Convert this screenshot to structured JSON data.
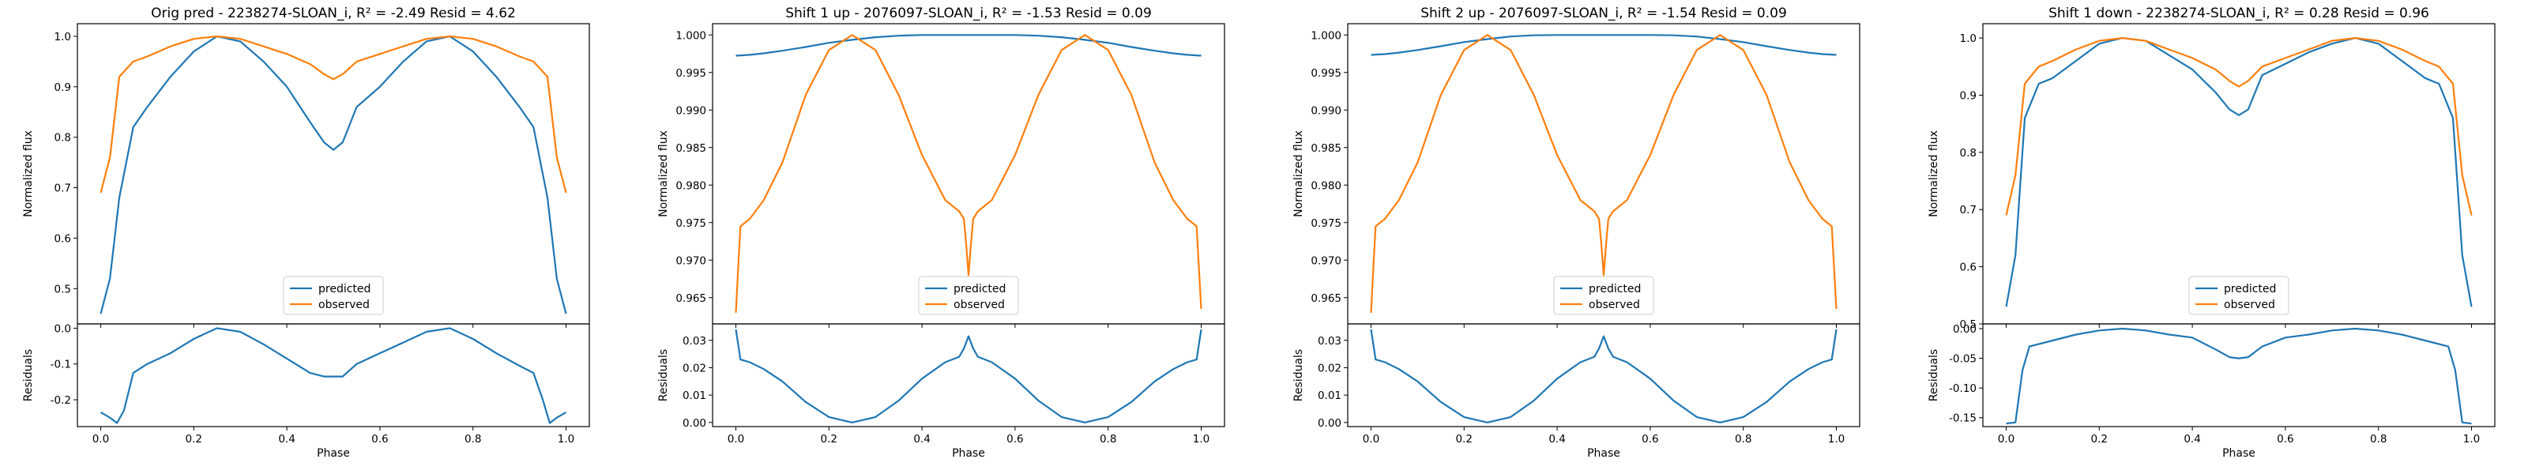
{
  "colors": {
    "predicted": "#1f77b4",
    "observed": "#ff7f0e"
  },
  "figure": {
    "panels": [
      {
        "title": "Orig pred - 2238274-SLOAN_i, R² = -2.49 Resid = 4.62",
        "main": {
          "ylabel": "Normalized flux",
          "ylim": [
            0.43,
            1.025
          ],
          "yticks": [
            0.5,
            0.6,
            0.7,
            0.8,
            0.9,
            1.0
          ]
        },
        "resid": {
          "ylabel": "Residuals",
          "xlabel": "Phase",
          "ylim": [
            -0.275,
            0.012
          ],
          "yticks": [
            0.0,
            -0.1,
            -0.2
          ]
        },
        "xticks": [
          0.0,
          0.2,
          0.4,
          0.6,
          0.8,
          1.0
        ],
        "legend": [
          "predicted",
          "observed"
        ]
      },
      {
        "title": "Shift 1 up - 2076097-SLOAN_i, R² = -1.53 Resid = 0.09",
        "main": {
          "ylabel": "Normalized flux",
          "ylim": [
            0.9615,
            1.0015
          ],
          "yticks": [
            0.965,
            0.97,
            0.975,
            0.98,
            0.985,
            0.99,
            0.995,
            1.0
          ]
        },
        "resid": {
          "ylabel": "Residuals",
          "xlabel": "Phase",
          "ylim": [
            -0.0015,
            0.036
          ],
          "yticks": [
            0.0,
            0.01,
            0.02,
            0.03
          ]
        },
        "xticks": [
          0.0,
          0.2,
          0.4,
          0.6,
          0.8,
          1.0
        ],
        "legend": [
          "predicted",
          "observed"
        ]
      },
      {
        "title": "Shift 2 up - 2076097-SLOAN_i, R² = -1.54 Resid = 0.09",
        "main": {
          "ylabel": "Normalized flux",
          "ylim": [
            0.9615,
            1.0015
          ],
          "yticks": [
            0.965,
            0.97,
            0.975,
            0.98,
            0.985,
            0.99,
            0.995,
            1.0
          ]
        },
        "resid": {
          "ylabel": "Residuals",
          "xlabel": "Phase",
          "ylim": [
            -0.0015,
            0.036
          ],
          "yticks": [
            0.0,
            0.01,
            0.02,
            0.03
          ]
        },
        "xticks": [
          0.0,
          0.2,
          0.4,
          0.6,
          0.8,
          1.0
        ],
        "legend": [
          "predicted",
          "observed"
        ]
      },
      {
        "title": "Shift 1 down - 2238274-SLOAN_i, R² = 0.28 Resid = 0.96",
        "main": {
          "ylabel": "Normalized flux",
          "ylim": [
            0.5,
            1.025
          ],
          "yticks": [
            0.5,
            0.6,
            0.7,
            0.8,
            0.9,
            1.0
          ]
        },
        "resid": {
          "ylabel": "Residuals",
          "xlabel": "Phase",
          "ylim": [
            -0.165,
            0.008
          ],
          "yticks": [
            0.0,
            -0.05,
            -0.1,
            -0.15
          ]
        },
        "xticks": [
          0.0,
          0.2,
          0.4,
          0.6,
          0.8,
          1.0
        ],
        "legend": [
          "predicted",
          "observed"
        ]
      }
    ]
  },
  "chart_data": [
    {
      "type": "line",
      "title": "Orig pred - 2238274-SLOAN_i, R² = -2.49 Resid = 4.62",
      "xlabel": "Phase",
      "ylabel": "Normalized flux",
      "xlim": [
        -0.05,
        1.05
      ],
      "ylim": [
        0.43,
        1.025
      ],
      "legend_loc": "lower center",
      "grid": false,
      "x": [
        0.0,
        0.02,
        0.04,
        0.07,
        0.1,
        0.15,
        0.2,
        0.25,
        0.3,
        0.35,
        0.4,
        0.45,
        0.48,
        0.5,
        0.52,
        0.55,
        0.6,
        0.65,
        0.7,
        0.75,
        0.8,
        0.85,
        0.9,
        0.93,
        0.96,
        0.98,
        1.0
      ],
      "series": [
        {
          "name": "predicted",
          "values": [
            0.45,
            0.52,
            0.68,
            0.82,
            0.86,
            0.92,
            0.97,
            1.0,
            0.99,
            0.95,
            0.9,
            0.83,
            0.79,
            0.775,
            0.79,
            0.86,
            0.9,
            0.95,
            0.99,
            1.0,
            0.97,
            0.92,
            0.86,
            0.82,
            0.68,
            0.52,
            0.45
          ]
        },
        {
          "name": "observed",
          "values": [
            0.69,
            0.76,
            0.92,
            0.95,
            0.96,
            0.98,
            0.995,
            1.0,
            0.995,
            0.98,
            0.965,
            0.945,
            0.925,
            0.915,
            0.925,
            0.95,
            0.965,
            0.98,
            0.995,
            1.0,
            0.995,
            0.98,
            0.96,
            0.95,
            0.92,
            0.76,
            0.69
          ]
        }
      ],
      "residuals": {
        "ylabel": "Residuals",
        "ylim": [
          -0.275,
          0.012
        ],
        "x": [
          0.0,
          0.02,
          0.035,
          0.05,
          0.07,
          0.1,
          0.15,
          0.2,
          0.25,
          0.3,
          0.35,
          0.4,
          0.45,
          0.48,
          0.52,
          0.55,
          0.6,
          0.65,
          0.7,
          0.75,
          0.8,
          0.85,
          0.9,
          0.93,
          0.95,
          0.965,
          0.98,
          1.0
        ],
        "values": [
          -0.235,
          -0.25,
          -0.265,
          -0.23,
          -0.125,
          -0.1,
          -0.07,
          -0.03,
          0.0,
          -0.01,
          -0.045,
          -0.085,
          -0.125,
          -0.135,
          -0.135,
          -0.1,
          -0.07,
          -0.04,
          -0.01,
          0.0,
          -0.03,
          -0.07,
          -0.105,
          -0.125,
          -0.2,
          -0.265,
          -0.25,
          -0.235
        ]
      }
    },
    {
      "type": "line",
      "title": "Shift 1 up - 2076097-SLOAN_i, R² = -1.53 Resid = 0.09",
      "xlabel": "Phase",
      "ylabel": "Normalized flux",
      "xlim": [
        -0.05,
        1.05
      ],
      "ylim": [
        0.9615,
        1.0015
      ],
      "legend_loc": "lower center",
      "grid": false,
      "x": [
        0.0,
        0.005,
        0.01,
        0.03,
        0.06,
        0.1,
        0.15,
        0.2,
        0.25,
        0.3,
        0.35,
        0.4,
        0.45,
        0.48,
        0.49,
        0.495,
        0.5,
        0.505,
        0.51,
        0.52,
        0.55,
        0.6,
        0.65,
        0.7,
        0.75,
        0.8,
        0.85,
        0.9,
        0.94,
        0.97,
        0.99,
        0.995,
        1.0
      ],
      "series": [
        {
          "name": "predicted",
          "values": [
            0.99725,
            0.99725,
            0.99728,
            0.99735,
            0.99755,
            0.9979,
            0.9984,
            0.99895,
            0.99935,
            0.9997,
            0.9999,
            1.0,
            1.0,
            1.0,
            1.0,
            1.0,
            1.0,
            1.0,
            1.0,
            1.0,
            1.0,
            1.0,
            0.9999,
            0.9997,
            0.99935,
            0.99895,
            0.9984,
            0.9979,
            0.99755,
            0.99735,
            0.99728,
            0.99725,
            0.99725
          ]
        },
        {
          "name": "observed",
          "values": [
            0.963,
            0.969,
            0.9745,
            0.9755,
            0.978,
            0.983,
            0.992,
            0.998,
            1.0,
            0.998,
            0.992,
            0.984,
            0.978,
            0.9765,
            0.9755,
            0.972,
            0.968,
            0.972,
            0.9755,
            0.9765,
            0.978,
            0.984,
            0.992,
            0.998,
            1.0,
            0.998,
            0.992,
            0.983,
            0.978,
            0.9755,
            0.9745,
            0.969,
            0.9635
          ]
        }
      ],
      "residuals": {
        "ylabel": "Residuals",
        "ylim": [
          -0.0015,
          0.036
        ],
        "x": [
          0.0,
          0.01,
          0.03,
          0.06,
          0.1,
          0.15,
          0.2,
          0.25,
          0.3,
          0.35,
          0.4,
          0.45,
          0.48,
          0.49,
          0.5,
          0.51,
          0.52,
          0.55,
          0.6,
          0.65,
          0.7,
          0.75,
          0.8,
          0.85,
          0.9,
          0.94,
          0.97,
          0.99,
          1.0
        ],
        "values": [
          0.034,
          0.023,
          0.022,
          0.0195,
          0.015,
          0.0075,
          0.002,
          0.0,
          0.002,
          0.008,
          0.016,
          0.022,
          0.024,
          0.027,
          0.0315,
          0.027,
          0.024,
          0.022,
          0.016,
          0.008,
          0.002,
          0.0,
          0.002,
          0.0075,
          0.015,
          0.0195,
          0.022,
          0.023,
          0.034
        ]
      }
    },
    {
      "type": "line",
      "title": "Shift 2 up - 2076097-SLOAN_i, R² = -1.54 Resid = 0.09",
      "xlabel": "Phase",
      "ylabel": "Normalized flux",
      "xlim": [
        -0.05,
        1.05
      ],
      "ylim": [
        0.9615,
        1.0015
      ],
      "legend_loc": "lower center",
      "grid": false,
      "x": [
        0.0,
        0.005,
        0.01,
        0.03,
        0.06,
        0.1,
        0.15,
        0.2,
        0.25,
        0.3,
        0.35,
        0.4,
        0.45,
        0.48,
        0.49,
        0.495,
        0.5,
        0.505,
        0.51,
        0.52,
        0.55,
        0.6,
        0.65,
        0.7,
        0.75,
        0.8,
        0.85,
        0.9,
        0.94,
        0.97,
        0.99,
        0.995,
        1.0
      ],
      "series": [
        {
          "name": "predicted",
          "values": [
            0.99735,
            0.99735,
            0.99738,
            0.99745,
            0.99765,
            0.998,
            0.9985,
            0.99905,
            0.99945,
            0.9998,
            0.99995,
            1.0,
            1.0,
            1.0,
            1.0,
            1.0,
            1.0,
            1.0,
            1.0,
            1.0,
            1.0,
            1.0,
            0.99995,
            0.9998,
            0.99945,
            0.99905,
            0.9985,
            0.998,
            0.99765,
            0.99745,
            0.99738,
            0.99735,
            0.99735
          ]
        },
        {
          "name": "observed",
          "values": [
            0.963,
            0.969,
            0.9745,
            0.9755,
            0.978,
            0.983,
            0.992,
            0.998,
            1.0,
            0.998,
            0.992,
            0.984,
            0.978,
            0.9765,
            0.9755,
            0.972,
            0.968,
            0.972,
            0.9755,
            0.9765,
            0.978,
            0.984,
            0.992,
            0.998,
            1.0,
            0.998,
            0.992,
            0.983,
            0.978,
            0.9755,
            0.9745,
            0.969,
            0.9635
          ]
        }
      ],
      "residuals": {
        "ylabel": "Residuals",
        "ylim": [
          -0.0015,
          0.036
        ],
        "x": [
          0.0,
          0.01,
          0.03,
          0.06,
          0.1,
          0.15,
          0.2,
          0.25,
          0.3,
          0.35,
          0.4,
          0.45,
          0.48,
          0.49,
          0.5,
          0.51,
          0.52,
          0.55,
          0.6,
          0.65,
          0.7,
          0.75,
          0.8,
          0.85,
          0.9,
          0.94,
          0.97,
          0.99,
          1.0
        ],
        "values": [
          0.034,
          0.023,
          0.022,
          0.0195,
          0.015,
          0.0075,
          0.002,
          0.0,
          0.002,
          0.008,
          0.016,
          0.022,
          0.024,
          0.027,
          0.0315,
          0.027,
          0.024,
          0.022,
          0.016,
          0.008,
          0.002,
          0.0,
          0.002,
          0.0075,
          0.015,
          0.0195,
          0.022,
          0.023,
          0.034
        ]
      }
    },
    {
      "type": "line",
      "title": "Shift 1 down - 2238274-SLOAN_i, R² = 0.28 Resid = 0.96",
      "xlabel": "Phase",
      "ylabel": "Normalized flux",
      "xlim": [
        -0.05,
        1.05
      ],
      "ylim": [
        0.5,
        1.025
      ],
      "legend_loc": "lower center",
      "grid": false,
      "x": [
        0.0,
        0.02,
        0.04,
        0.07,
        0.1,
        0.15,
        0.2,
        0.25,
        0.3,
        0.35,
        0.4,
        0.45,
        0.48,
        0.5,
        0.52,
        0.55,
        0.6,
        0.65,
        0.7,
        0.75,
        0.8,
        0.85,
        0.9,
        0.93,
        0.96,
        0.98,
        1.0
      ],
      "series": [
        {
          "name": "predicted",
          "values": [
            0.53,
            0.62,
            0.86,
            0.92,
            0.93,
            0.96,
            0.99,
            1.0,
            0.995,
            0.97,
            0.945,
            0.905,
            0.875,
            0.865,
            0.875,
            0.935,
            0.955,
            0.975,
            0.99,
            1.0,
            0.99,
            0.96,
            0.93,
            0.92,
            0.86,
            0.62,
            0.53
          ]
        },
        {
          "name": "observed",
          "values": [
            0.69,
            0.76,
            0.92,
            0.95,
            0.96,
            0.98,
            0.995,
            1.0,
            0.995,
            0.98,
            0.965,
            0.945,
            0.925,
            0.915,
            0.925,
            0.95,
            0.965,
            0.98,
            0.995,
            1.0,
            0.995,
            0.98,
            0.96,
            0.95,
            0.92,
            0.76,
            0.69
          ]
        }
      ],
      "residuals": {
        "ylabel": "Residuals",
        "ylim": [
          -0.165,
          0.008
        ],
        "x": [
          0.0,
          0.02,
          0.035,
          0.05,
          0.1,
          0.15,
          0.2,
          0.25,
          0.3,
          0.35,
          0.4,
          0.45,
          0.48,
          0.5,
          0.52,
          0.55,
          0.6,
          0.65,
          0.7,
          0.75,
          0.8,
          0.85,
          0.9,
          0.95,
          0.965,
          0.98,
          1.0
        ],
        "values": [
          -0.16,
          -0.158,
          -0.07,
          -0.03,
          -0.02,
          -0.01,
          -0.003,
          0.0,
          -0.003,
          -0.01,
          -0.015,
          -0.035,
          -0.048,
          -0.05,
          -0.048,
          -0.03,
          -0.015,
          -0.01,
          -0.003,
          0.0,
          -0.003,
          -0.01,
          -0.02,
          -0.03,
          -0.07,
          -0.158,
          -0.16
        ]
      }
    }
  ]
}
